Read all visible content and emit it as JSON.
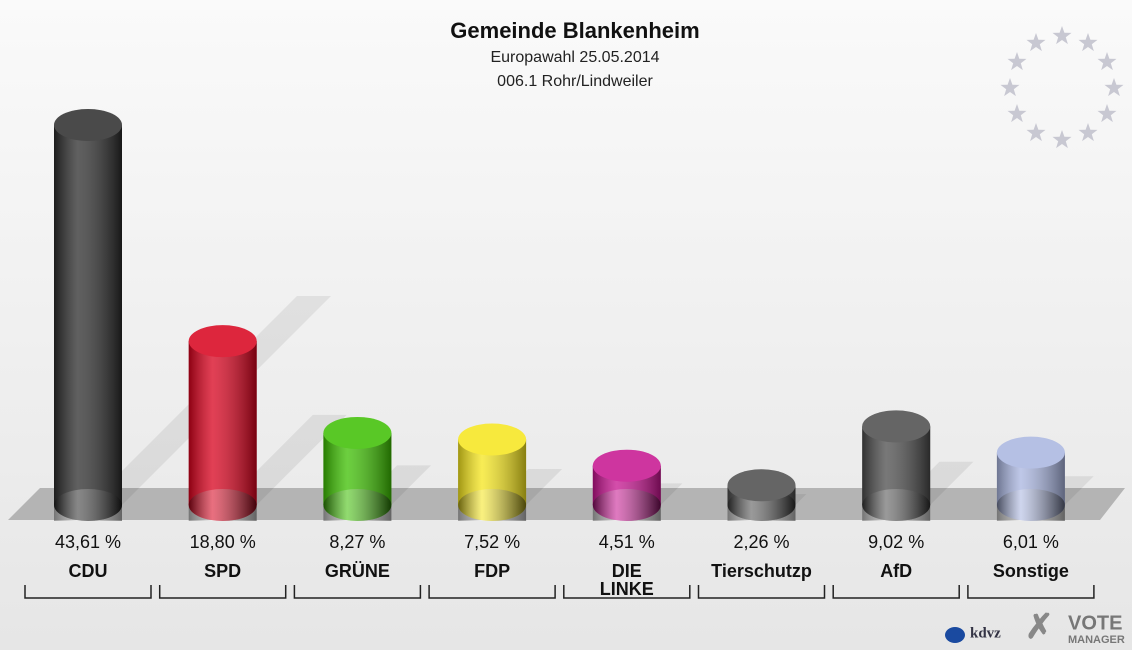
{
  "chart_data": {
    "type": "bar",
    "title": "Gemeinde Blankenheim",
    "subtitle": "Europawahl 25.05.2014",
    "district": "006.1 Rohr/Lindweiler",
    "categories": [
      "CDU",
      "SPD",
      "GRÜNE",
      "FDP",
      "DIE\nLINKE",
      "Tierschutzp",
      "AfD",
      "Sonstige"
    ],
    "values": [
      43.61,
      18.8,
      8.27,
      7.52,
      4.51,
      2.26,
      9.02,
      6.01
    ],
    "value_labels": [
      "43,61 %",
      "18,80 %",
      "8,27 %",
      "7,52 %",
      "4,51 %",
      "2,26 %",
      "9,02 %",
      "6,01 %"
    ],
    "colors": [
      "#2b2b2b",
      "#d8001c",
      "#3cbf00",
      "#f6e61c",
      "#c6128f",
      "#4b4b4b",
      "#4b4b4b",
      "#a9b5e0"
    ],
    "logo": [
      "kdvz",
      "VOTE",
      "MANAGER"
    ]
  }
}
